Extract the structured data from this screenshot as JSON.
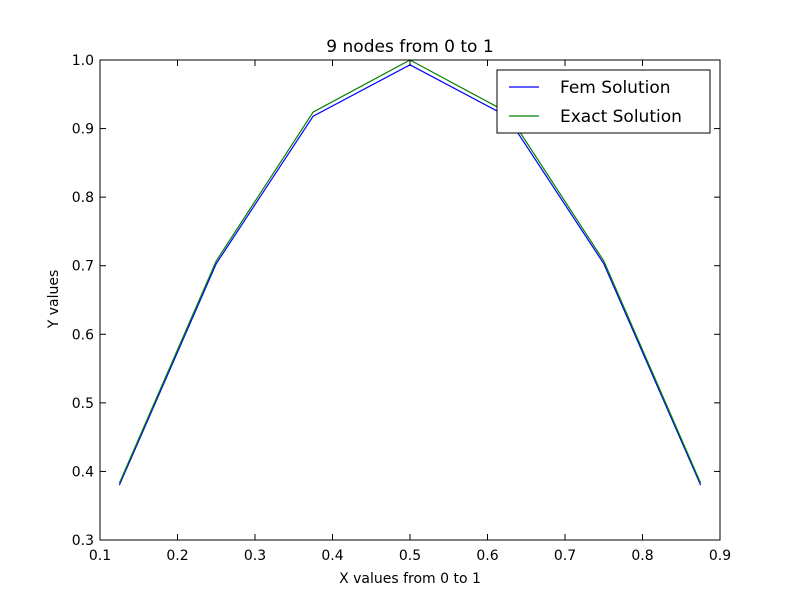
{
  "chart_data": {
    "type": "line",
    "title": "9 nodes from 0 to 1",
    "xlabel": "X values from 0 to 1",
    "ylabel": "Y values",
    "xlim": [
      0.1,
      0.9
    ],
    "ylim": [
      0.3,
      1.0
    ],
    "xticks": [
      "0.1",
      "0.2",
      "0.3",
      "0.4",
      "0.5",
      "0.6",
      "0.7",
      "0.8",
      "0.9"
    ],
    "yticks": [
      "0.3",
      "0.4",
      "0.5",
      "0.6",
      "0.7",
      "0.8",
      "0.9",
      "1.0"
    ],
    "grid": false,
    "legend_position": "top-right",
    "x": [
      0.125,
      0.25,
      0.375,
      0.5,
      0.625,
      0.75,
      0.875
    ],
    "series": [
      {
        "name": "Fem Solution",
        "color": "#0000ff",
        "values": [
          0.38,
          0.703,
          0.918,
          0.993,
          0.918,
          0.703,
          0.38
        ]
      },
      {
        "name": "Exact Solution",
        "color": "#008000",
        "values": [
          0.383,
          0.707,
          0.924,
          1.0,
          0.924,
          0.707,
          0.383
        ]
      }
    ]
  }
}
